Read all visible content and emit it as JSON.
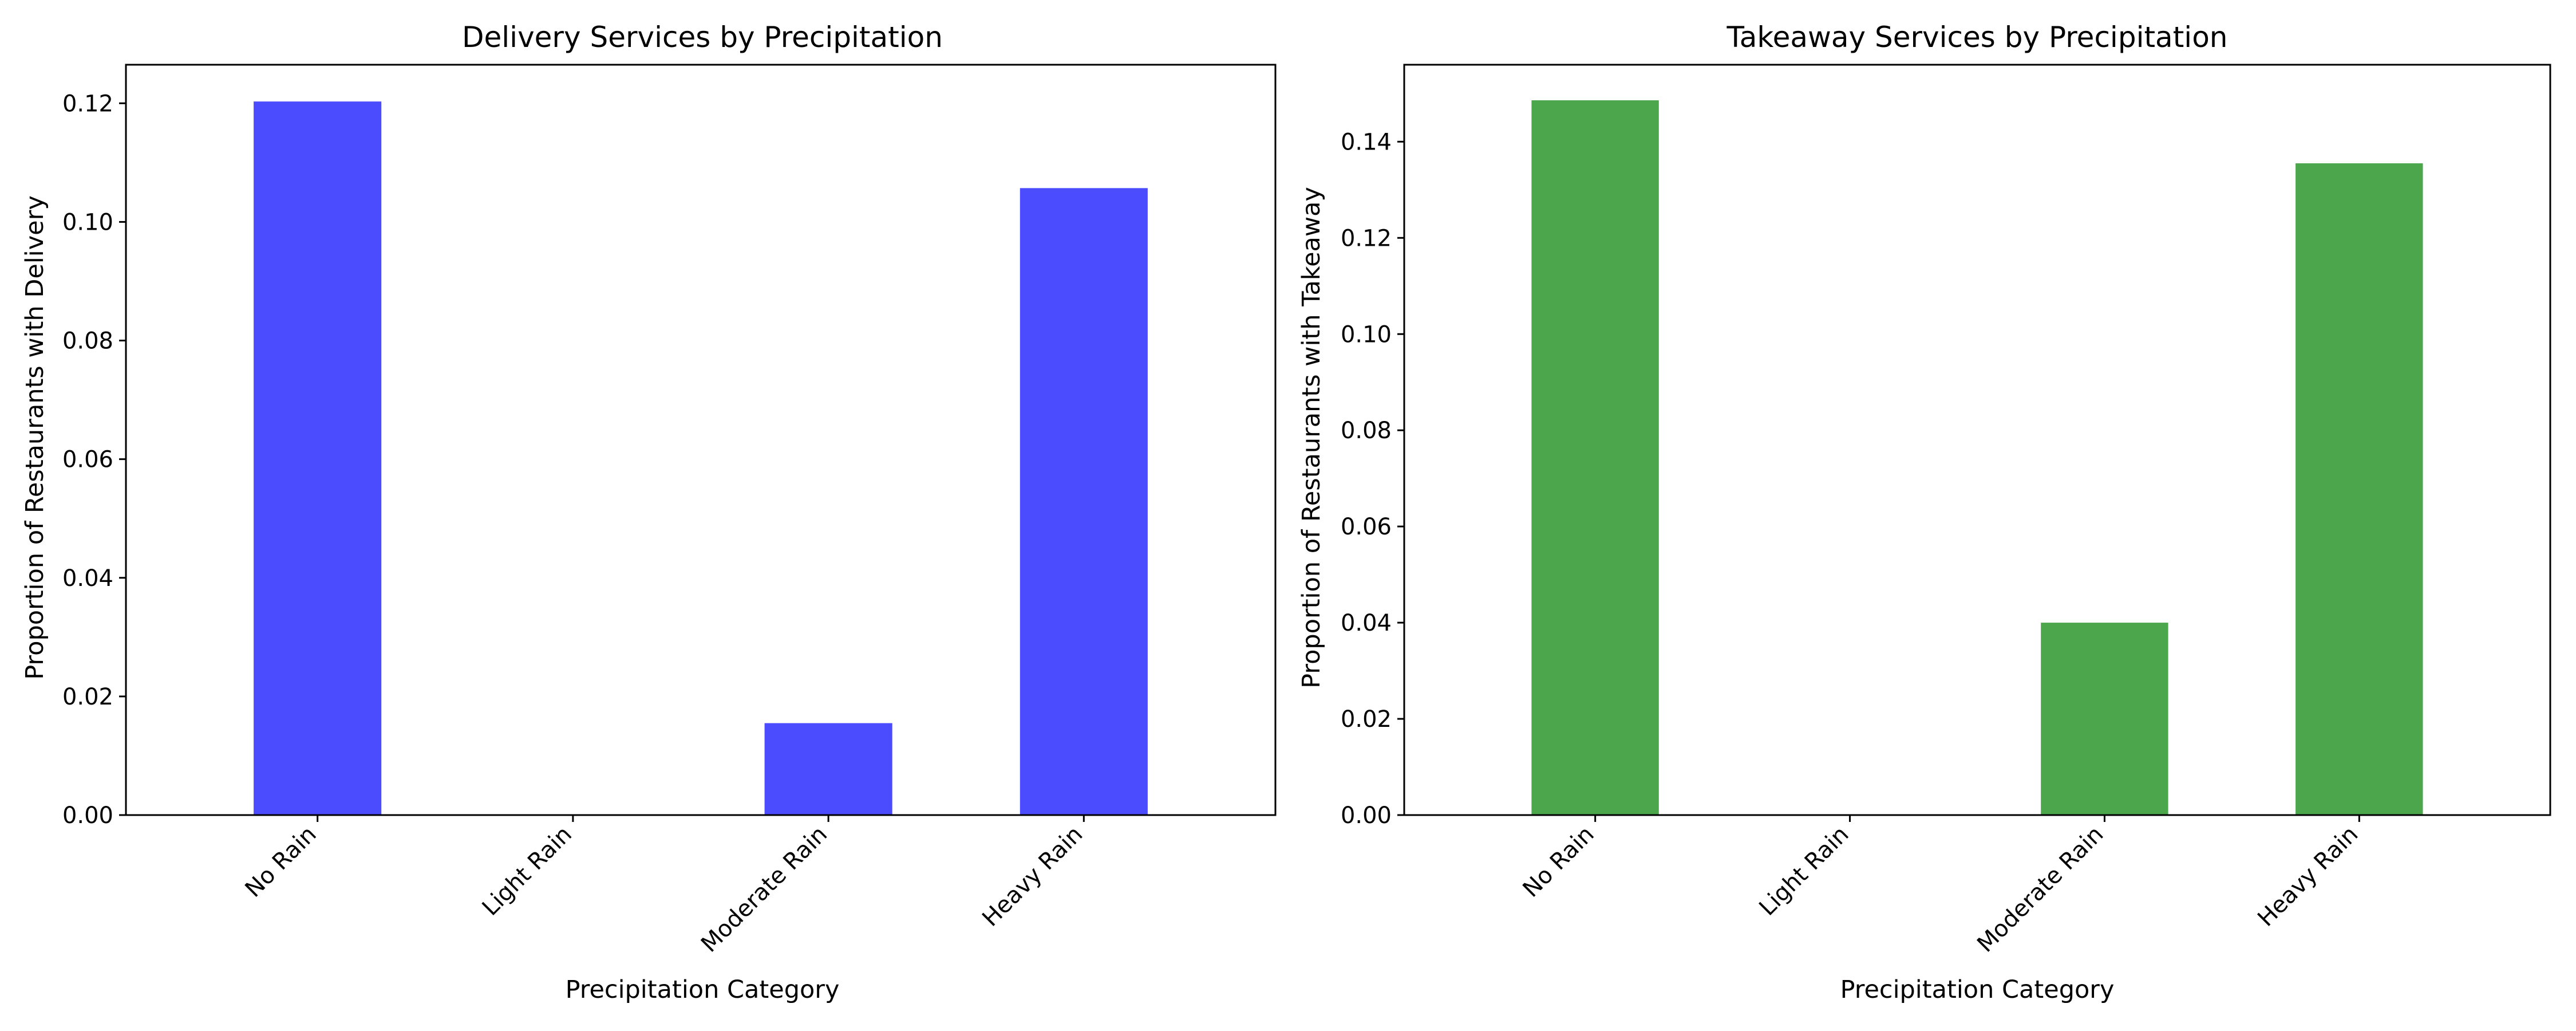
{
  "chart_data": [
    {
      "type": "bar",
      "title": "Delivery Services by Precipitation",
      "xlabel": "Precipitation Category",
      "ylabel": "Proportion of Restaurants with Delivery",
      "categories": [
        "No Rain",
        "Light Rain",
        "Moderate Rain",
        "Heavy Rain"
      ],
      "values": [
        0.1203,
        0.0,
        0.0155,
        0.1057
      ],
      "ylim": [
        0,
        0.1265
      ],
      "yticks": [
        0.0,
        0.02,
        0.04,
        0.06,
        0.08,
        0.1,
        0.12
      ],
      "ytick_labels": [
        "0.00",
        "0.02",
        "0.04",
        "0.06",
        "0.08",
        "0.10",
        "0.12"
      ],
      "color": "#4c4cff",
      "grid": false
    },
    {
      "type": "bar",
      "title": "Takeaway Services by Precipitation",
      "xlabel": "Precipitation Category",
      "ylabel": "Proportion of Restaurants with Takeaway",
      "categories": [
        "No Rain",
        "Light Rain",
        "Moderate Rain",
        "Heavy Rain"
      ],
      "values": [
        0.1486,
        0.0,
        0.04,
        0.1355
      ],
      "ylim": [
        0,
        0.156
      ],
      "yticks": [
        0.0,
        0.02,
        0.04,
        0.06,
        0.08,
        0.1,
        0.12,
        0.14
      ],
      "ytick_labels": [
        "0.00",
        "0.02",
        "0.04",
        "0.06",
        "0.08",
        "0.10",
        "0.12",
        "0.14"
      ],
      "color": "#4ca64c",
      "grid": false
    }
  ]
}
